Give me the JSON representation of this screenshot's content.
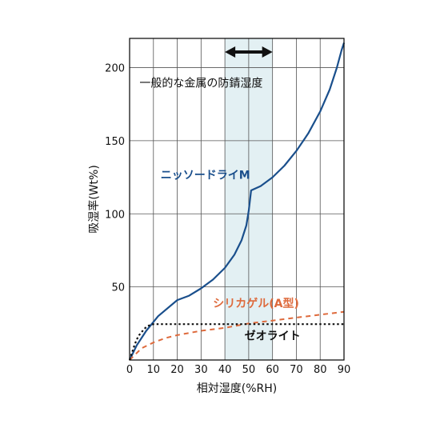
{
  "chart_data": {
    "type": "line",
    "xlabel": "相対湿度(%RH)",
    "ylabel": "吸湿率(Wt%)",
    "xlim": [
      0,
      90
    ],
    "ylim": [
      0,
      220
    ],
    "xticks": [
      0,
      10,
      20,
      30,
      40,
      50,
      60,
      70,
      80,
      90
    ],
    "yticks": [
      50,
      100,
      150,
      200
    ],
    "grid": true,
    "band": {
      "x0": 40,
      "x1": 60,
      "color": "#e3f0f3"
    },
    "band_label": "一般的な金属の防錆湿度",
    "series": [
      {
        "name": "ニッソードライM",
        "color": "#1a4f8c",
        "style": "solid",
        "points": [
          [
            0,
            0
          ],
          [
            3,
            10
          ],
          [
            7,
            20
          ],
          [
            12,
            30
          ],
          [
            20,
            41
          ],
          [
            25,
            44
          ],
          [
            30,
            49
          ],
          [
            35,
            55
          ],
          [
            40,
            63
          ],
          [
            44,
            72
          ],
          [
            47,
            82
          ],
          [
            49,
            92
          ],
          [
            50,
            102
          ],
          [
            51,
            116
          ],
          [
            55,
            119
          ],
          [
            60,
            125
          ],
          [
            65,
            133
          ],
          [
            70,
            143
          ],
          [
            75,
            155
          ],
          [
            80,
            170
          ],
          [
            84,
            185
          ],
          [
            87,
            200
          ],
          [
            89,
            212
          ],
          [
            90,
            217
          ]
        ]
      },
      {
        "name": "シリカゲル(A型)",
        "color": "#de6a3c",
        "style": "dashed",
        "points": [
          [
            0,
            0
          ],
          [
            5,
            8
          ],
          [
            10,
            12
          ],
          [
            15,
            15
          ],
          [
            20,
            17
          ],
          [
            30,
            20
          ],
          [
            40,
            22
          ],
          [
            50,
            25
          ],
          [
            60,
            27
          ],
          [
            70,
            29
          ],
          [
            80,
            31
          ],
          [
            90,
            33
          ]
        ]
      },
      {
        "name": "ゼオライト",
        "color": "#111111",
        "style": "dotted",
        "points": [
          [
            0,
            0
          ],
          [
            1,
            5
          ],
          [
            2,
            10
          ],
          [
            3,
            14
          ],
          [
            4,
            17
          ],
          [
            5,
            19
          ],
          [
            6,
            21
          ],
          [
            7,
            22.5
          ],
          [
            8,
            23.5
          ],
          [
            10,
            24.5
          ],
          [
            20,
            24.5
          ],
          [
            40,
            24.5
          ],
          [
            60,
            24.5
          ],
          [
            80,
            24.5
          ],
          [
            90,
            24.5
          ]
        ]
      }
    ]
  }
}
